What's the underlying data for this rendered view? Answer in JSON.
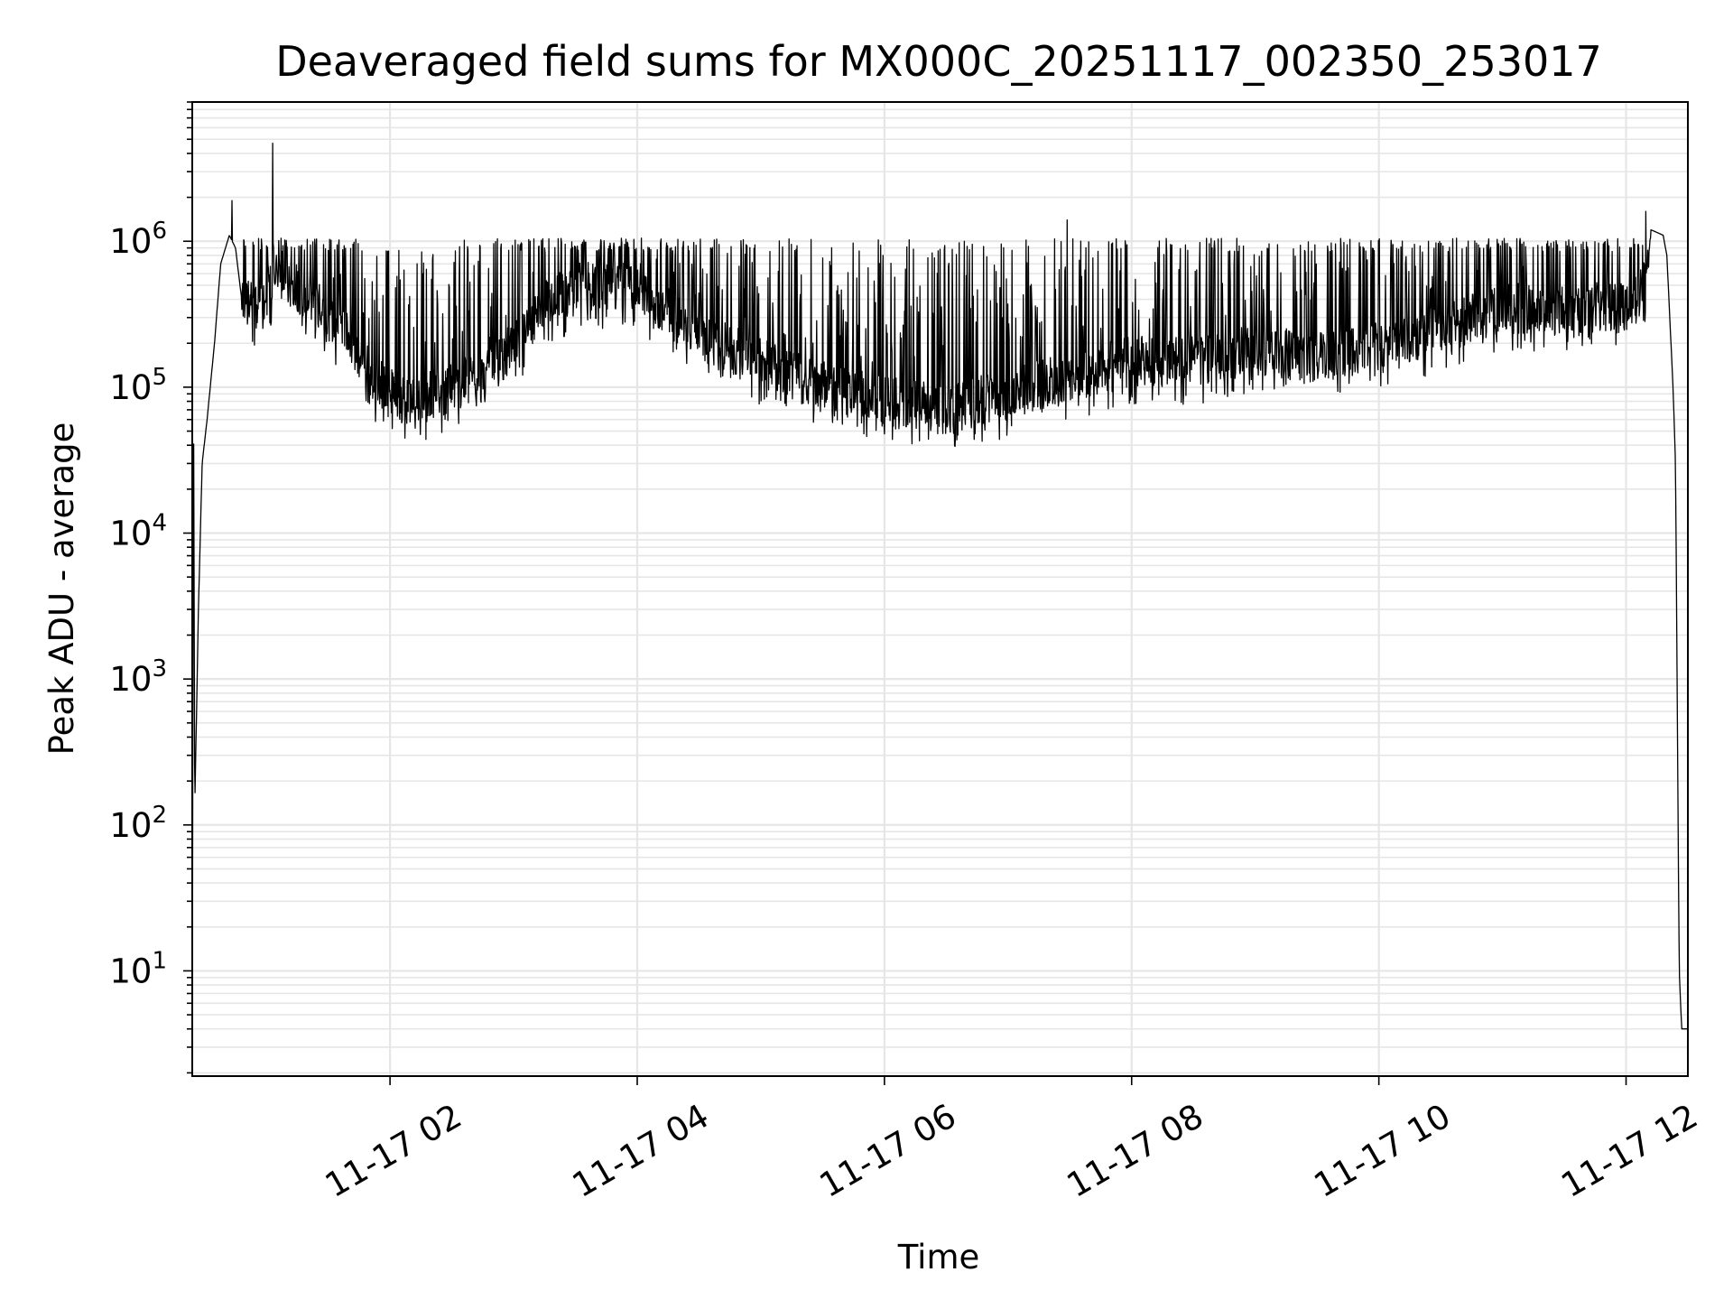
{
  "chart_data": {
    "type": "line",
    "title": "Deaveraged field sums for MX000C_20251117_002350_253017",
    "xlabel": "Time",
    "ylabel": "Peak ADU - average",
    "yscale": "log",
    "ylim": [
      1.9,
      9000000
    ],
    "xlim_hours": [
      0.4,
      12.5
    ],
    "grid": true,
    "x_ticks": [
      {
        "hour": 2,
        "label": "11-17 02"
      },
      {
        "hour": 4,
        "label": "11-17 04"
      },
      {
        "hour": 6,
        "label": "11-17 06"
      },
      {
        "hour": 8,
        "label": "11-17 08"
      },
      {
        "hour": 10,
        "label": "11-17 10"
      },
      {
        "hour": 12,
        "label": "11-17 12"
      }
    ],
    "y_ticks": [
      {
        "exp": 1,
        "base": "10",
        "sup": "1"
      },
      {
        "exp": 2,
        "base": "10",
        "sup": "2"
      },
      {
        "exp": 3,
        "base": "10",
        "sup": "3"
      },
      {
        "exp": 4,
        "base": "10",
        "sup": "4"
      },
      {
        "exp": 5,
        "base": "10",
        "sup": "5"
      },
      {
        "exp": 6,
        "base": "10",
        "sup": "6"
      }
    ],
    "series": [
      {
        "name": "field sums",
        "color": "#000000",
        "baseline_segments": [
          [
            0.4,
            2
          ],
          [
            0.41,
            100000
          ],
          [
            0.42,
            125
          ],
          [
            0.45,
            3000
          ],
          [
            0.48,
            30000
          ],
          [
            0.52,
            60000
          ],
          [
            0.58,
            200000
          ],
          [
            0.63,
            700000
          ],
          [
            0.7,
            1100000
          ],
          [
            0.75,
            900000
          ],
          [
            0.8,
            400000
          ],
          [
            0.9,
            350000
          ],
          [
            1.0,
            450000
          ],
          [
            1.1,
            600000
          ],
          [
            1.3,
            450000
          ],
          [
            1.5,
            300000
          ],
          [
            1.7,
            200000
          ],
          [
            1.85,
            120000
          ],
          [
            2.0,
            90000
          ],
          [
            2.2,
            80000
          ],
          [
            2.5,
            100000
          ],
          [
            2.8,
            120000
          ],
          [
            3.0,
            200000
          ],
          [
            3.3,
            400000
          ],
          [
            3.6,
            500000
          ],
          [
            4.0,
            500000
          ],
          [
            4.3,
            300000
          ],
          [
            4.6,
            200000
          ],
          [
            5.0,
            150000
          ],
          [
            5.5,
            100000
          ],
          [
            6.0,
            80000
          ],
          [
            6.5,
            70000
          ],
          [
            7.0,
            90000
          ],
          [
            7.5,
            120000
          ],
          [
            8.0,
            150000
          ],
          [
            8.5,
            150000
          ],
          [
            9.0,
            180000
          ],
          [
            9.5,
            160000
          ],
          [
            10.0,
            200000
          ],
          [
            10.5,
            250000
          ],
          [
            11.0,
            350000
          ],
          [
            11.5,
            350000
          ],
          [
            12.0,
            350000
          ],
          [
            12.15,
            500000
          ],
          [
            12.2,
            1200000
          ],
          [
            12.3,
            1100000
          ],
          [
            12.33,
            800000
          ],
          [
            12.38,
            100000
          ],
          [
            12.4,
            30000
          ],
          [
            12.43,
            10
          ],
          [
            12.45,
            4
          ],
          [
            12.5,
            4
          ]
        ],
        "noise_band": {
          "start_hour": 0.8,
          "end_hour": 12.2,
          "upper_limit": 1000000,
          "lower_limit": 40000
        },
        "spikes": [
          {
            "hour": 1.05,
            "value": 4700000
          },
          {
            "hour": 0.72,
            "value": 1900000
          },
          {
            "hour": 7.48,
            "value": 1400000
          },
          {
            "hour": 12.16,
            "value": 1600000
          }
        ]
      }
    ]
  }
}
